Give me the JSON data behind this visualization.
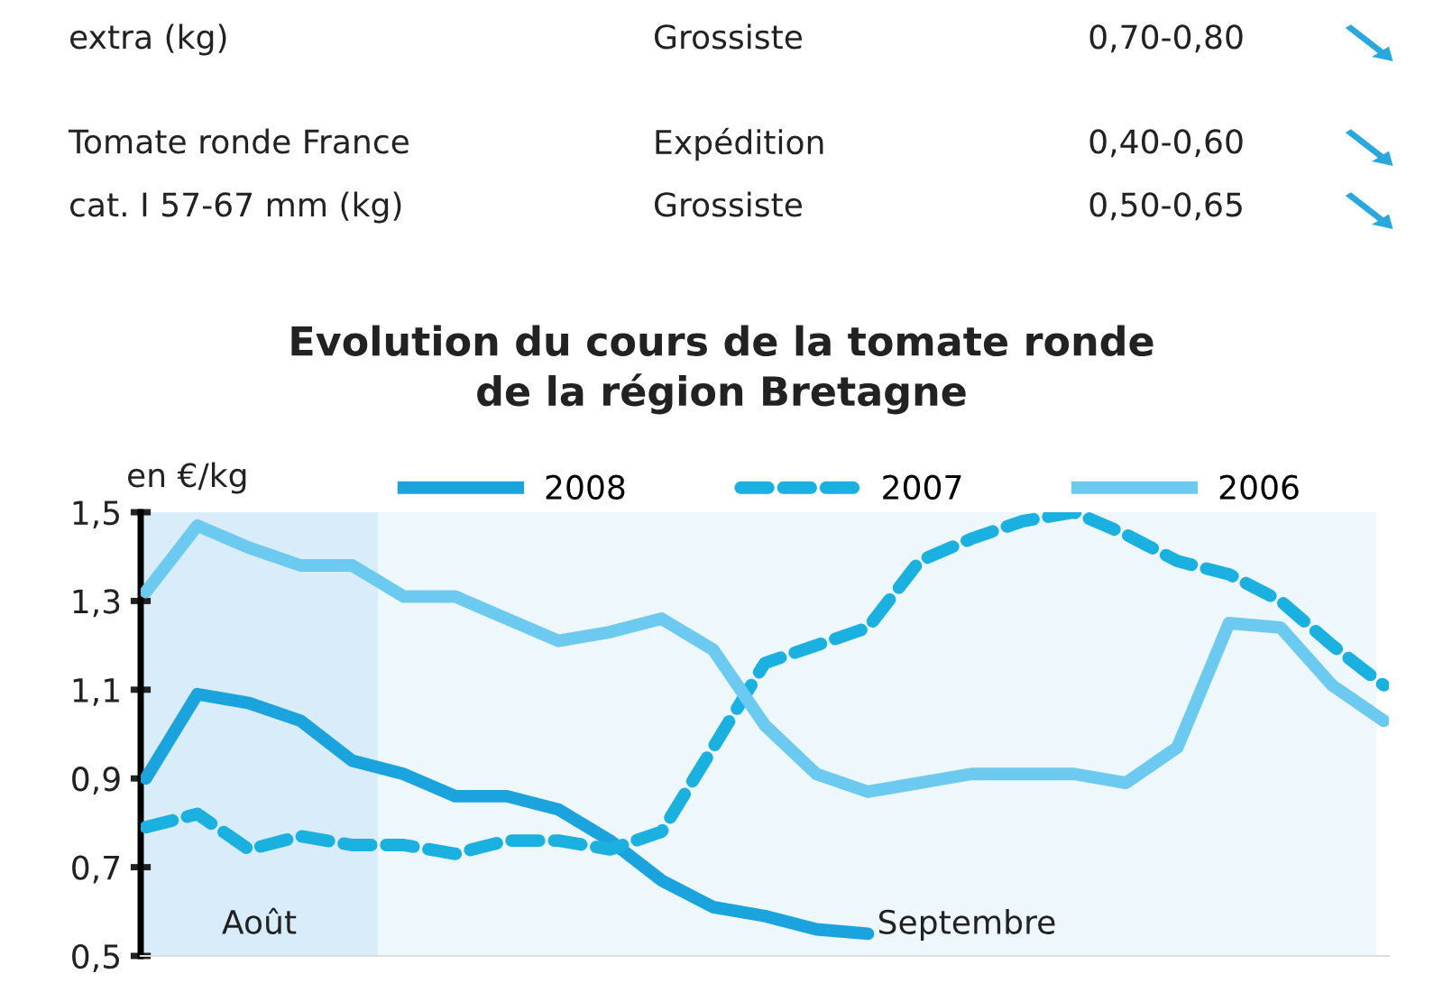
{
  "chart_data": {
    "type": "line",
    "title": "Evolution du cours de la tomate ronde\nde la région Bretagne",
    "ylabel": "en €/kg",
    "annotations": [
      "extra (kg)",
      "Grossiste",
      "0,70-0,80",
      "Tomate ronde France",
      "Expédition",
      "0,40-0,60",
      "cat. I 57-67 mm (kg)",
      "Grossiste",
      "0,50-0,65",
      "Août",
      "Septembre"
    ],
    "categories": [
      null,
      null,
      null,
      null,
      null,
      null,
      null,
      null,
      null,
      null,
      null,
      null,
      null,
      null,
      null,
      null,
      null,
      null,
      null,
      null,
      null,
      null,
      null,
      null,
      null
    ],
    "series": [
      {
        "name": "2008",
        "color": "#1aa3dc",
        "line_style": "solid",
        "values": [
          0.9,
          1.09,
          1.07,
          1.03,
          0.94,
          0.91,
          0.86,
          0.86,
          0.83,
          0.76,
          0.67,
          0.61,
          0.59,
          0.56,
          0.55,
          null,
          null,
          null,
          null,
          null,
          null,
          null,
          null,
          null,
          null
        ]
      },
      {
        "name": "2007",
        "color": "#1ab0e0",
        "line_style": "dashed",
        "values": [
          0.79,
          0.82,
          0.74,
          0.77,
          0.75,
          0.75,
          0.73,
          0.76,
          0.76,
          0.74,
          0.78,
          0.97,
          1.16,
          1.2,
          1.24,
          1.39,
          1.44,
          1.48,
          1.5,
          1.45,
          1.39,
          1.36,
          1.3,
          1.2,
          1.11
        ]
      },
      {
        "name": "2006",
        "color": "#6ccaf0",
        "line_style": "solid",
        "values": [
          1.32,
          1.47,
          1.42,
          1.38,
          1.38,
          1.31,
          1.31,
          1.26,
          1.21,
          1.23,
          1.26,
          1.19,
          1.02,
          0.91,
          0.87,
          0.89,
          0.91,
          0.91,
          0.91,
          0.89,
          0.97,
          1.25,
          1.24,
          1.11,
          1.03
        ]
      }
    ],
    "ylim": [
      0.5,
      1.5
    ],
    "yticks": [
      {
        "value": 0.5,
        "label": "0,5"
      },
      {
        "value": 0.7,
        "label": "0,7"
      },
      {
        "value": 0.9,
        "label": "0,9"
      },
      {
        "value": 1.1,
        "label": "1,1"
      },
      {
        "value": 1.3,
        "label": "1,3"
      },
      {
        "value": 1.5,
        "label": "1,5"
      }
    ],
    "tick_labels": "y",
    "legend": "top",
    "grid": false,
    "marker": "none"
  }
}
